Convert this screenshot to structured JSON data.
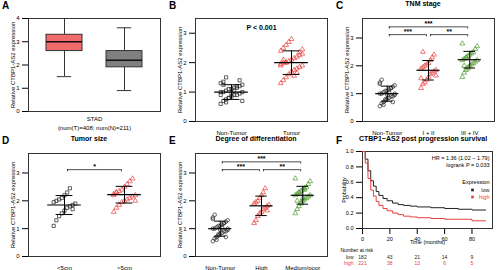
{
  "chart_data": [
    {
      "type": "box",
      "panel": "A",
      "xlabel": "STAD",
      "subtitle": "(num(T)=408; num(N)=211)",
      "ylabel": "Relative CTBP1-AS2 expression",
      "ylim": [
        0,
        4
      ],
      "yticks": [
        0,
        1,
        2,
        3,
        4
      ],
      "tick_labels": "y",
      "series": [
        {
          "color": "#f26b6b",
          "q1": 2.6,
          "median": 3.0,
          "q3": 3.3,
          "whisker_low": 1.5,
          "whisker_high": 4.0
        },
        {
          "color": "#808080",
          "q1": 1.9,
          "median": 2.2,
          "q3": 2.6,
          "whisker_low": 0.9,
          "whisker_high": 3.6
        }
      ]
    },
    {
      "type": "scatter",
      "panel": "B",
      "ylabel": "Relative CTBP1-AS2 expression",
      "ylim": [
        0,
        3.5
      ],
      "yticks": [
        0,
        1,
        2,
        3
      ],
      "annotation": "P < 0.001",
      "series": [
        {
          "name": "Non-Tumor",
          "color": "#222222",
          "marker": "square",
          "mean": 1.0,
          "sd": 0.25,
          "values": [
            0.6,
            0.7,
            0.75,
            0.8,
            0.85,
            0.9,
            0.9,
            0.95,
            1.0,
            1.0,
            1.0,
            1.05,
            1.1,
            1.1,
            1.15,
            1.2,
            1.2,
            1.25,
            1.3,
            1.35,
            0.65,
            0.8,
            0.95,
            1.05,
            1.15,
            1.4,
            0.7,
            0.9,
            1.25,
            1.5
          ]
        },
        {
          "name": "Tumor",
          "color": "#e8403f",
          "marker": "triangle",
          "mean": 2.0,
          "sd": 0.4,
          "values": [
            1.3,
            1.4,
            1.5,
            1.6,
            1.7,
            1.75,
            1.8,
            1.85,
            1.9,
            1.95,
            2.0,
            2.0,
            2.05,
            2.1,
            2.15,
            2.2,
            2.25,
            2.3,
            2.4,
            2.5,
            2.6,
            2.7,
            2.8,
            1.55,
            1.65,
            2.35,
            2.45,
            1.9,
            2.1,
            2.0
          ]
        }
      ]
    },
    {
      "type": "scatter",
      "panel": "C",
      "title": "TNM stage",
      "ylabel": "Relative CTBP1-AS2 expression",
      "ylim": [
        0,
        3.7
      ],
      "yticks": [
        0,
        1,
        2,
        3
      ],
      "comparisons": [
        {
          "pair": [
            "Non-Tumor",
            "I + II"
          ],
          "label": "***"
        },
        {
          "pair": [
            "I + II",
            "III + IV"
          ],
          "label": "**"
        },
        {
          "pair": [
            "Non-Tumor",
            "III + IV"
          ],
          "label": "***"
        }
      ],
      "series": [
        {
          "name": "Non-Tumor",
          "color": "#222222",
          "marker": "circle",
          "mean": 1.0,
          "sd": 0.27,
          "values": [
            0.55,
            0.65,
            0.7,
            0.75,
            0.8,
            0.85,
            0.9,
            0.9,
            0.95,
            1.0,
            1.0,
            1.05,
            1.1,
            1.1,
            1.15,
            1.2,
            1.25,
            1.3,
            1.4,
            1.5,
            0.6,
            0.8,
            0.95,
            1.05,
            1.2,
            0.7,
            1.0,
            1.35
          ]
        },
        {
          "name": "I + II",
          "color": "#e8403f",
          "marker": "triangle",
          "mean": 1.84,
          "sd": 0.35,
          "values": [
            1.2,
            1.35,
            1.4,
            1.5,
            1.6,
            1.7,
            1.75,
            1.8,
            1.85,
            1.9,
            1.95,
            2.0,
            2.05,
            2.1,
            2.2,
            2.3,
            2.4,
            1.65,
            1.55,
            2.5
          ]
        },
        {
          "name": "III + IV",
          "color": "#4e9a2a",
          "marker": "triangle",
          "mean": 2.22,
          "sd": 0.3,
          "values": [
            1.6,
            1.75,
            1.85,
            1.9,
            2.0,
            2.05,
            2.1,
            2.15,
            2.2,
            2.2,
            2.25,
            2.3,
            2.35,
            2.4,
            2.45,
            2.5,
            2.6,
            2.7,
            2.8,
            2.0,
            2.3,
            1.95
          ]
        }
      ]
    },
    {
      "type": "scatter",
      "panel": "D",
      "title": "Tumor size",
      "ylabel": "Relative CTBP1-AS2 expression",
      "ylim": [
        0,
        3.7
      ],
      "yticks": [
        0,
        1,
        2,
        3
      ],
      "comparisons": [
        {
          "pair": [
            "<5cm",
            ">5cm"
          ],
          "label": "*"
        }
      ],
      "series": [
        {
          "name": "<5cm",
          "color": "#222222",
          "marker": "square",
          "mean": 1.85,
          "sd": 0.34,
          "values": [
            1.1,
            1.3,
            1.45,
            1.55,
            1.65,
            1.75,
            1.8,
            1.85,
            1.9,
            1.95,
            2.0,
            2.05,
            2.1,
            2.2,
            2.3,
            2.45,
            1.7
          ]
        },
        {
          "name": ">5cm",
          "color": "#e8403f",
          "marker": "triangle",
          "mean": 2.22,
          "sd": 0.3,
          "values": [
            1.6,
            1.75,
            1.85,
            1.95,
            2.0,
            2.05,
            2.1,
            2.15,
            2.2,
            2.25,
            2.3,
            2.35,
            2.4,
            2.5,
            2.6,
            2.7,
            2.8,
            2.0,
            2.2,
            2.3
          ]
        }
      ]
    },
    {
      "type": "scatter",
      "panel": "E",
      "title": "Degree of differentiation",
      "ylabel": "Relative CTBP1-AS2 expression",
      "ylim": [
        0,
        3.7
      ],
      "yticks": [
        0,
        1,
        2,
        3
      ],
      "comparisons": [
        {
          "pair": [
            "Non-Tumor",
            "High"
          ],
          "label": "***"
        },
        {
          "pair": [
            "High",
            "Medium/poor"
          ],
          "label": "**"
        },
        {
          "pair": [
            "Non-Tumor",
            "Medium/poor"
          ],
          "label": "***"
        }
      ],
      "series": [
        {
          "name": "Non-Tumor",
          "color": "#222222",
          "marker": "circle",
          "mean": 1.0,
          "sd": 0.27,
          "values": [
            0.55,
            0.65,
            0.7,
            0.75,
            0.8,
            0.85,
            0.9,
            0.9,
            0.95,
            1.0,
            1.0,
            1.05,
            1.1,
            1.1,
            1.15,
            1.2,
            1.25,
            1.3,
            1.4,
            1.5,
            0.6,
            0.8,
            0.95,
            1.05,
            1.2,
            0.7,
            1.0,
            1.35
          ]
        },
        {
          "name": "High",
          "color": "#e8403f",
          "marker": "triangle",
          "mean": 1.82,
          "sd": 0.35,
          "values": [
            1.2,
            1.3,
            1.45,
            1.55,
            1.6,
            1.7,
            1.75,
            1.8,
            1.85,
            1.9,
            1.95,
            2.0,
            2.1,
            2.2,
            2.3,
            2.45,
            1.65
          ]
        },
        {
          "name": "Medium/poor",
          "color": "#4e9a2a",
          "marker": "triangle",
          "mean": 2.2,
          "sd": 0.32,
          "values": [
            1.55,
            1.7,
            1.8,
            1.9,
            2.0,
            2.05,
            2.1,
            2.15,
            2.2,
            2.2,
            2.25,
            2.3,
            2.35,
            2.4,
            2.45,
            2.5,
            2.6,
            2.7,
            2.8,
            2.0,
            2.3,
            1.95,
            2.1,
            2.4
          ]
        }
      ]
    },
    {
      "type": "survival",
      "panel": "F",
      "title": "CTBP1−AS2 post progression survival",
      "xlabel": "Time (months)",
      "ylabel": "Probability",
      "xlim": [
        0,
        95
      ],
      "xticks": [
        0,
        20,
        40,
        60,
        80
      ],
      "ylim": [
        0,
        1
      ],
      "yticks": [
        {
          "value": 0,
          "label": "0.0"
        },
        {
          "value": 0.2,
          "label": "0.2"
        },
        {
          "value": 0.4,
          "label": "0.4"
        },
        {
          "value": 0.6,
          "label": "0.6"
        },
        {
          "value": 0.8,
          "label": "0.8"
        },
        {
          "value": 1,
          "label": "1.0"
        }
      ],
      "annotations": [
        "HR = 1.36 (1.02 − 1.79)",
        "logrank P = 0.033"
      ],
      "legend": "right",
      "legend_title": "Expression",
      "x": [
        0,
        2,
        4,
        6,
        8,
        10,
        12,
        15,
        18,
        22,
        26,
        30,
        35,
        40,
        50,
        60,
        70,
        80,
        90
      ],
      "series": [
        {
          "name": "low",
          "color": "#222222",
          "values": [
            1,
            0.9,
            0.75,
            0.62,
            0.55,
            0.48,
            0.43,
            0.39,
            0.36,
            0.33,
            0.31,
            0.3,
            0.29,
            0.28,
            0.27,
            0.26,
            0.25,
            0.24,
            0.24
          ],
          "at_risk": [
            182,
            43,
            21,
            14,
            9
          ]
        },
        {
          "name": "high",
          "color": "#e8403f",
          "values": [
            1,
            0.85,
            0.65,
            0.5,
            0.42,
            0.35,
            0.3,
            0.26,
            0.23,
            0.2,
            0.18,
            0.16,
            0.15,
            0.14,
            0.13,
            0.12,
            0.12,
            0.1,
            0.1
          ],
          "at_risk": [
            221,
            38,
            13,
            6,
            5
          ]
        }
      ],
      "risk_title": "Number at risk",
      "risk_times": [
        0,
        20,
        40,
        60,
        80
      ]
    }
  ]
}
